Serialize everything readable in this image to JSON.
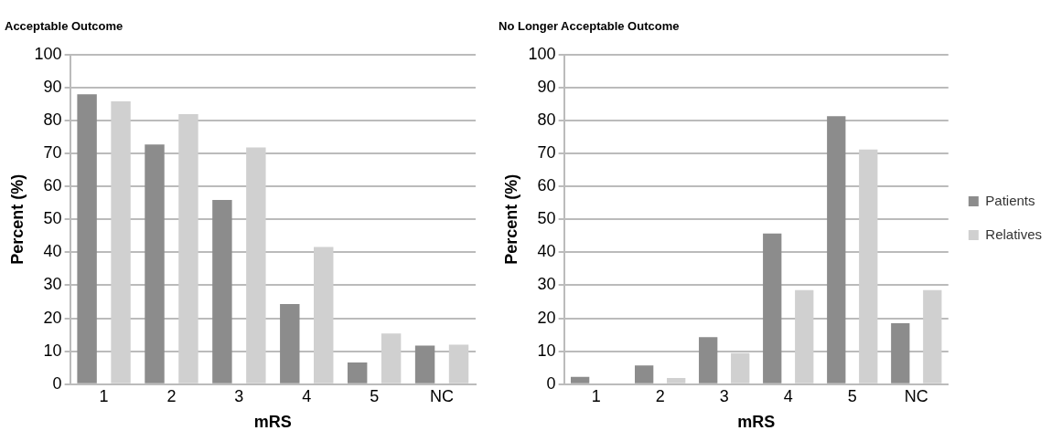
{
  "chart_data": [
    {
      "type": "bar",
      "title": "Acceptable Outcome",
      "xlabel": "mRS",
      "ylabel": "Percent (%)",
      "categories": [
        "1",
        "2",
        "3",
        "4",
        "5",
        "NC"
      ],
      "series": [
        {
          "color": "#8c8c8c",
          "values": [
            87.9,
            72.7,
            55.9,
            24.3,
            6.6,
            11.7
          ]
        },
        {
          "color": "#d0d0d0",
          "values": [
            85.8,
            81.9,
            71.8,
            41.6,
            15.4,
            12.0
          ]
        }
      ],
      "ylim": [
        0,
        100
      ],
      "yticks": [
        0,
        10,
        20,
        30,
        40,
        50,
        60,
        70,
        80,
        90,
        100
      ],
      "grid": "y",
      "legend": false
    },
    {
      "type": "bar",
      "title": "No Longer Acceptable Outcome",
      "xlabel": "mRS",
      "ylabel": "Percent (%)",
      "categories": [
        "1",
        "2",
        "3",
        "4",
        "5",
        "NC"
      ],
      "series": [
        {
          "name": "Patients",
          "color": "#8c8c8c",
          "values": [
            2.2,
            5.7,
            14.3,
            45.7,
            81.3,
            18.5
          ]
        },
        {
          "name": "Relatives",
          "color": "#d0d0d0",
          "values": [
            0,
            1.9,
            9.4,
            28.5,
            71.2,
            28.5
          ]
        }
      ],
      "ylim": [
        0,
        100
      ],
      "yticks": [
        0,
        10,
        20,
        30,
        40,
        50,
        60,
        70,
        80,
        90,
        100
      ],
      "grid": "y",
      "legend": "right"
    }
  ]
}
